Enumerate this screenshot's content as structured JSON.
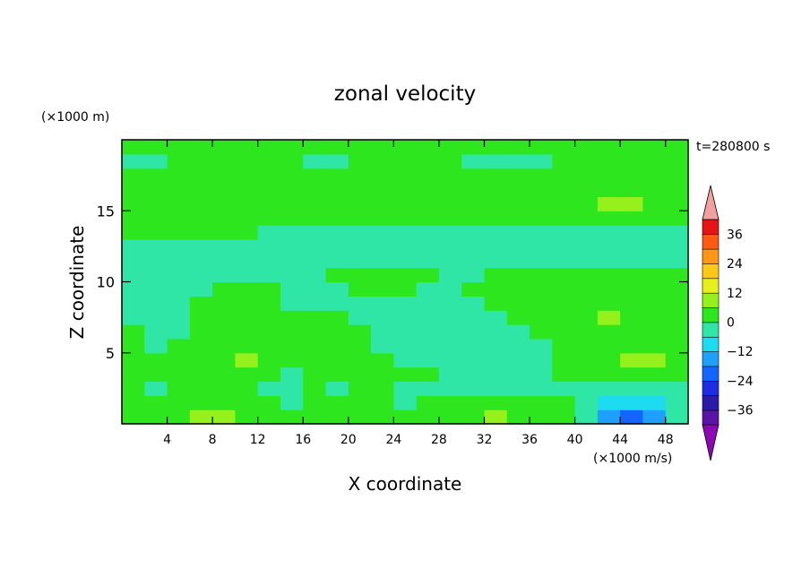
{
  "chart_data": {
    "type": "heatmap",
    "title": "zonal velocity",
    "xlabel": "X coordinate",
    "ylabel": "Z coordinate",
    "x_unit": "(×1000 m/s)",
    "y_unit": "(×1000 m)",
    "time_label": "t=280800 s",
    "xlim": [
      0,
      50
    ],
    "ylim": [
      0,
      20
    ],
    "x_ticks": [
      4,
      8,
      12,
      16,
      20,
      24,
      28,
      32,
      36,
      40,
      44,
      48
    ],
    "y_ticks": [
      5,
      10,
      15
    ],
    "colorbar": {
      "levels": [
        -42,
        -36,
        -30,
        -24,
        -18,
        -12,
        -6,
        0,
        6,
        12,
        18,
        24,
        30,
        36,
        42
      ],
      "colors": [
        "#8c08b4",
        "#5a14a6",
        "#2c1aa8",
        "#1c2ee0",
        "#1464ff",
        "#1ea0ff",
        "#1edcf0",
        "#30e6a6",
        "#2ee61e",
        "#96f01c",
        "#e6f01a",
        "#ffc814",
        "#ff9614",
        "#ff5a14",
        "#e61414",
        "#f0a0a0"
      ],
      "tick_values": [
        36,
        24,
        12,
        0,
        -12,
        -24,
        -36
      ],
      "tick_labels": [
        "36",
        "24",
        "12",
        "0",
        "−12",
        "−24",
        "−36"
      ]
    },
    "ncols": 25,
    "nrows": 20,
    "grid": [
      [
        0,
        4,
        4,
        8,
        8,
        4,
        0,
        0,
        3,
        3,
        4,
        0,
        0,
        0,
        3,
        5,
        7,
        5,
        3,
        0,
        -6,
        -18,
        -22,
        -18,
        -6
      ],
      [
        0,
        3,
        3,
        5,
        5,
        3,
        0,
        -3,
        0,
        0,
        0,
        0,
        -3,
        0,
        0,
        3,
        3,
        3,
        0,
        0,
        -3,
        -10,
        -12,
        -10,
        -3
      ],
      [
        0,
        -3,
        3,
        0,
        0,
        0,
        -3,
        -3,
        3,
        -3,
        3,
        0,
        -3,
        -3,
        -3,
        -3,
        -3,
        -6,
        -3,
        -3,
        -3,
        -3,
        -6,
        -3,
        -3
      ],
      [
        3,
        0,
        0,
        0,
        3,
        5,
        3,
        -3,
        0,
        3,
        5,
        0,
        0,
        0,
        -3,
        -6,
        -6,
        -6,
        -3,
        0,
        3,
        3,
        3,
        3,
        0
      ],
      [
        3,
        0,
        0,
        3,
        5,
        8,
        5,
        0,
        3,
        3,
        3,
        0,
        -3,
        -3,
        -6,
        -6,
        -6,
        -6,
        -3,
        0,
        3,
        5,
        7,
        9,
        5
      ],
      [
        0,
        -3,
        0,
        0,
        3,
        3,
        3,
        0,
        3,
        3,
        0,
        -3,
        -3,
        -6,
        -6,
        -6,
        -6,
        -6,
        -3,
        0,
        3,
        5,
        5,
        5,
        3
      ],
      [
        0,
        -3,
        -3,
        0,
        0,
        0,
        3,
        3,
        0,
        0,
        0,
        -3,
        -3,
        -6,
        -6,
        -6,
        -6,
        -3,
        0,
        3,
        5,
        5,
        5,
        3,
        0
      ],
      [
        -3,
        -6,
        -3,
        0,
        0,
        0,
        3,
        0,
        0,
        0,
        -3,
        -3,
        -3,
        -6,
        -6,
        -6,
        -3,
        0,
        3,
        5,
        5,
        7,
        5,
        3,
        0
      ],
      [
        -3,
        -6,
        -6,
        0,
        0,
        0,
        0,
        -3,
        -3,
        -3,
        -3,
        -3,
        -3,
        -6,
        -6,
        -3,
        0,
        3,
        5,
        5,
        5,
        5,
        3,
        0,
        0
      ],
      [
        -3,
        -3,
        -3,
        -3,
        0,
        0,
        0,
        -3,
        -3,
        -3,
        0,
        3,
        0,
        -3,
        -3,
        0,
        3,
        3,
        3,
        3,
        3,
        3,
        3,
        0,
        0
      ],
      [
        -3,
        -3,
        -3,
        -3,
        -3,
        -3,
        -3,
        -3,
        -3,
        0,
        3,
        5,
        3,
        0,
        -3,
        -3,
        0,
        0,
        0,
        0,
        0,
        0,
        0,
        0,
        0
      ],
      [
        -3,
        -3,
        -3,
        -3,
        -3,
        -3,
        -3,
        -3,
        -3,
        -3,
        -3,
        -3,
        -3,
        -3,
        -3,
        -3,
        -3,
        -3,
        -3,
        -3,
        -3,
        -3,
        -3,
        -3,
        -3
      ],
      [
        -3,
        -3,
        -3,
        -3,
        -3,
        -6,
        -6,
        -3,
        -3,
        -3,
        -3,
        -3,
        -3,
        -3,
        -3,
        -3,
        -3,
        -3,
        -3,
        -3,
        -3,
        -3,
        -3,
        -3,
        -3
      ],
      [
        0,
        0,
        0,
        0,
        0,
        0,
        -3,
        -3,
        -3,
        -3,
        -3,
        -3,
        -3,
        -3,
        -3,
        -3,
        -3,
        -3,
        -3,
        -3,
        -3,
        -3,
        -3,
        -3,
        -3
      ],
      [
        0,
        3,
        3,
        3,
        3,
        3,
        3,
        3,
        3,
        0,
        0,
        0,
        0,
        0,
        0,
        0,
        0,
        3,
        3,
        3,
        3,
        3,
        3,
        3,
        0
      ],
      [
        3,
        3,
        3,
        3,
        3,
        3,
        3,
        5,
        5,
        5,
        3,
        3,
        3,
        3,
        3,
        3,
        3,
        3,
        3,
        5,
        5,
        7,
        7,
        5,
        3
      ],
      [
        3,
        3,
        3,
        3,
        3,
        3,
        3,
        3,
        3,
        5,
        3,
        3,
        0,
        0,
        0,
        0,
        3,
        3,
        3,
        3,
        3,
        3,
        3,
        3,
        3
      ],
      [
        0,
        3,
        3,
        3,
        0,
        0,
        0,
        0,
        0,
        3,
        3,
        3,
        0,
        0,
        0,
        0,
        0,
        0,
        0,
        0,
        0,
        0,
        0,
        3,
        3
      ],
      [
        -3,
        -3,
        0,
        0,
        0,
        0,
        0,
        0,
        -3,
        -3,
        0,
        0,
        0,
        0,
        0,
        -3,
        -3,
        -3,
        -3,
        0,
        0,
        0,
        0,
        0,
        0
      ],
      [
        0,
        0,
        0,
        0,
        0,
        0,
        0,
        0,
        0,
        0,
        0,
        0,
        0,
        0,
        0,
        0,
        0,
        0,
        0,
        0,
        0,
        0,
        0,
        0,
        0
      ]
    ]
  }
}
